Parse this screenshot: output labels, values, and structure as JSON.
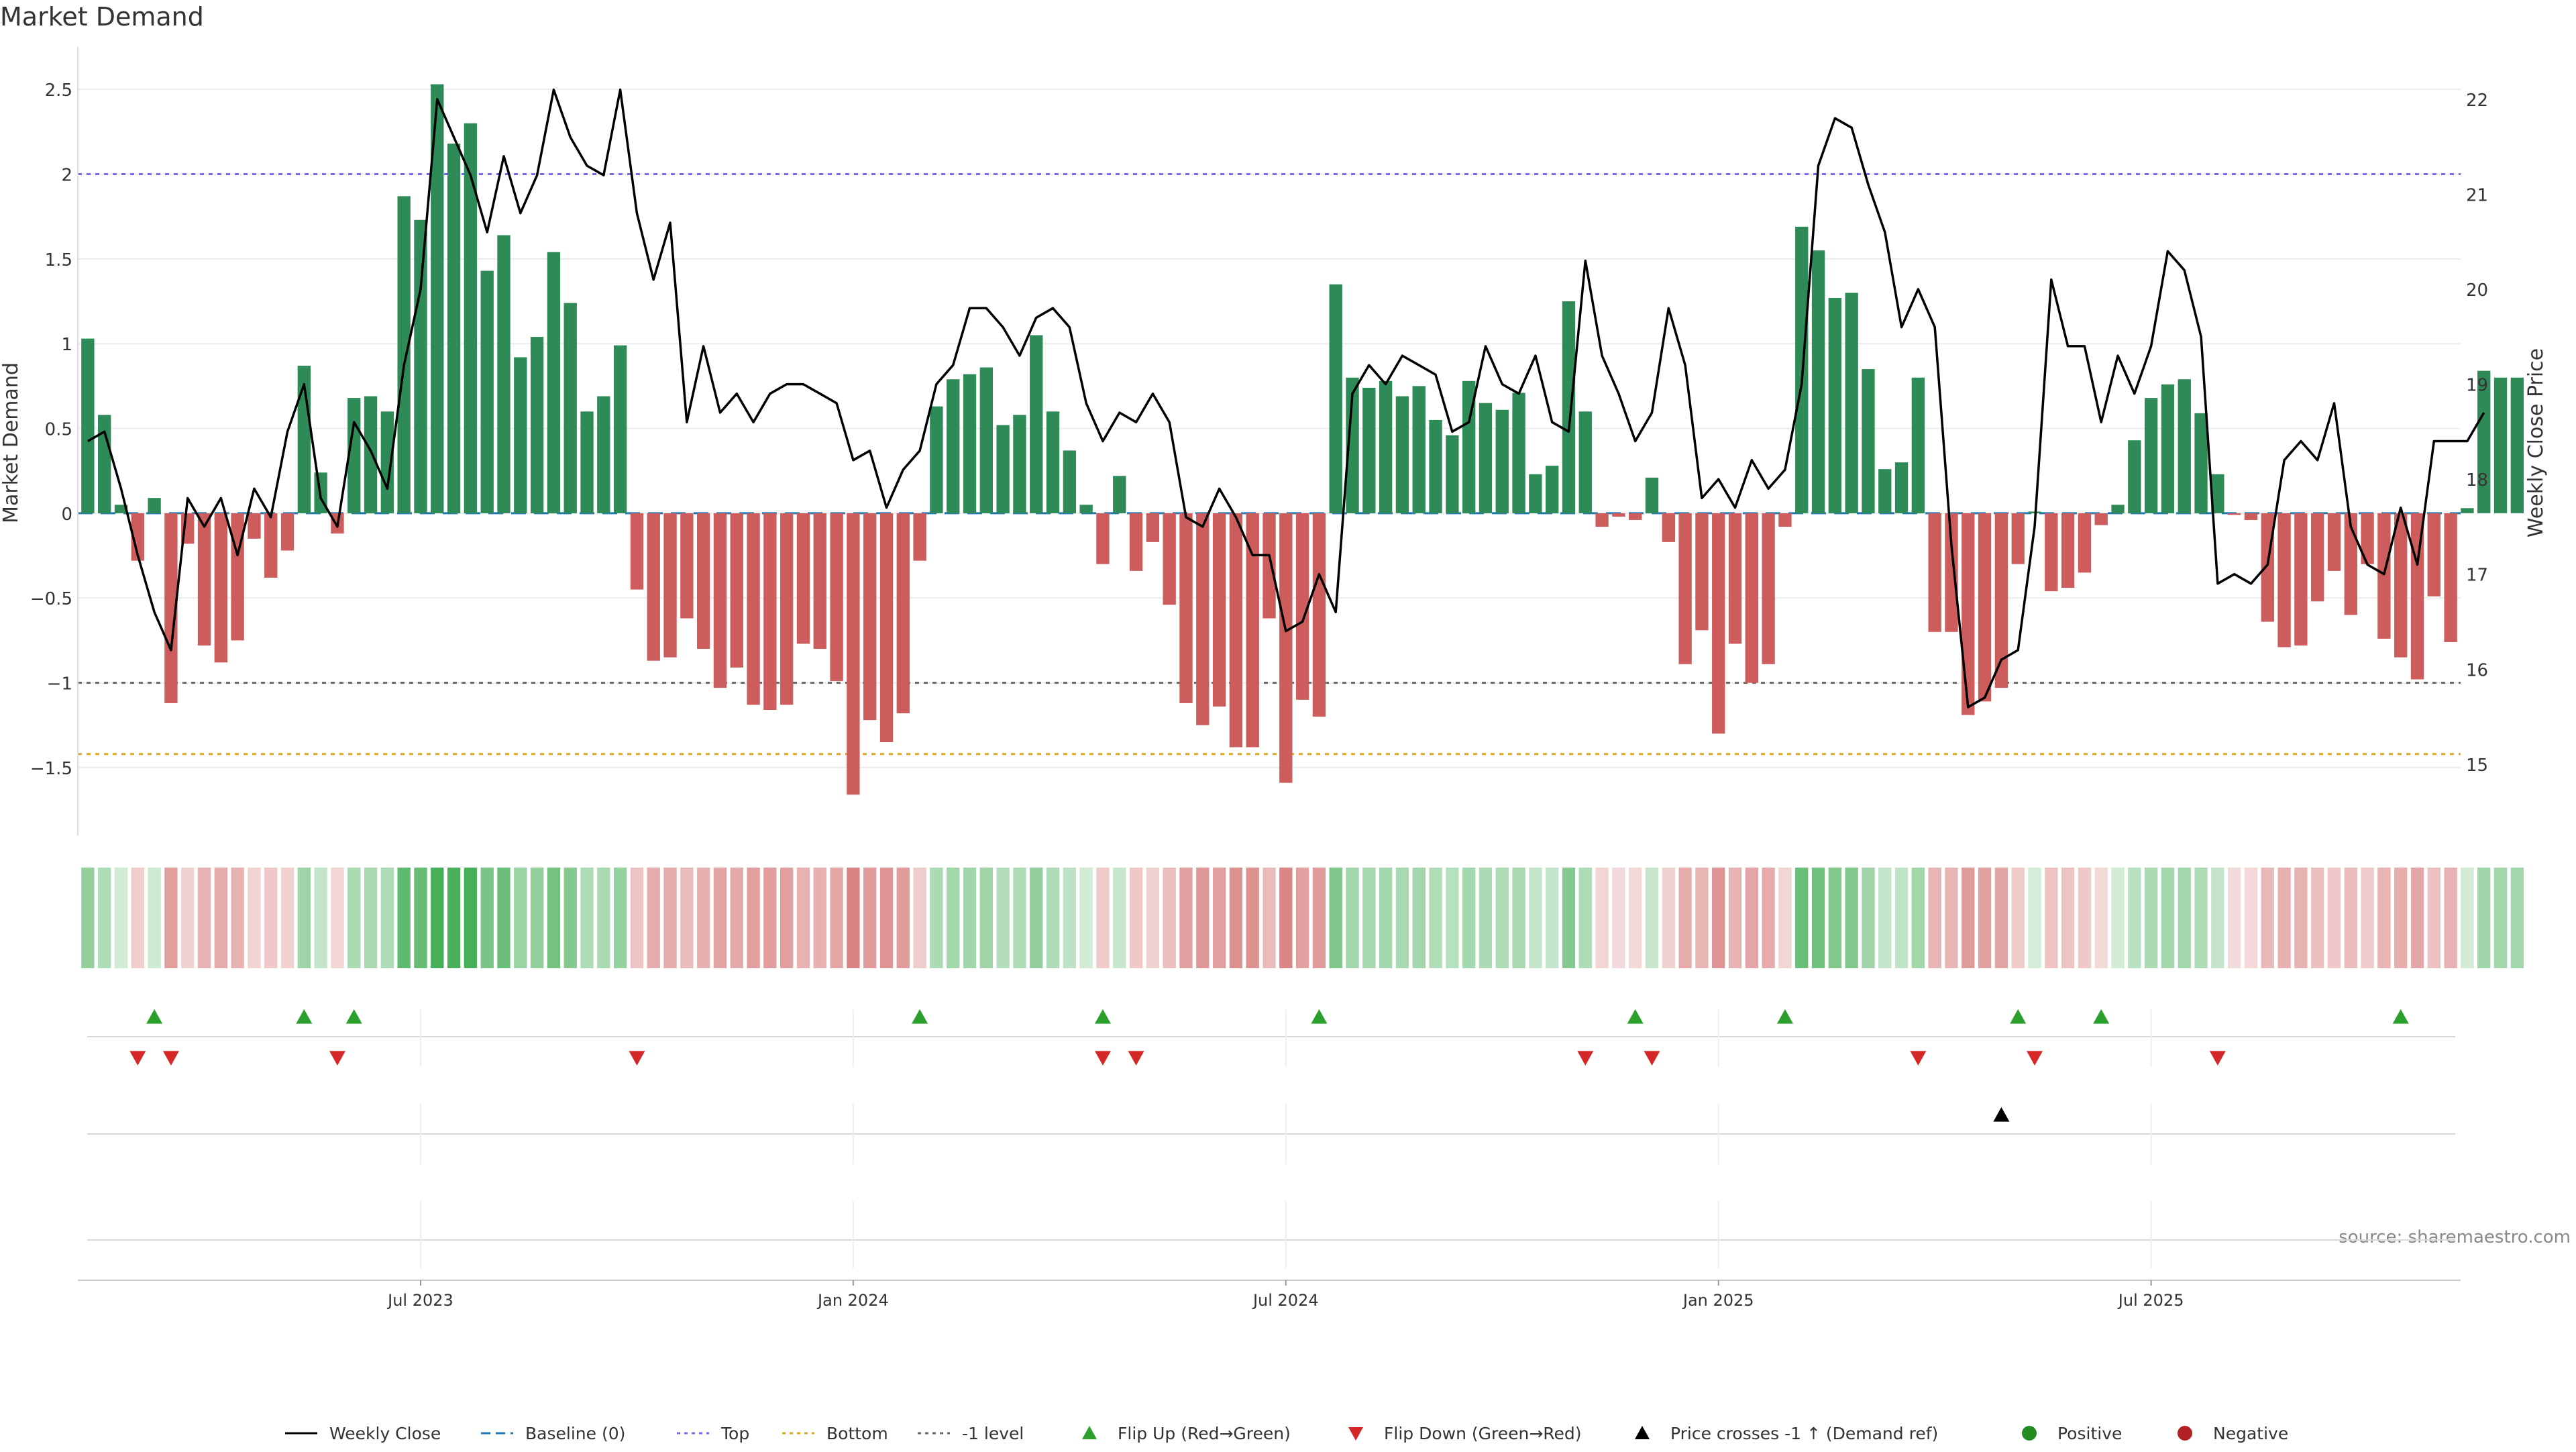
{
  "chart_data": {
    "type": "bar",
    "title": "Market Demand",
    "ylabel": "Market Demand",
    "y2label": "Weekly Close Price",
    "ylim": [
      -1.9,
      2.75
    ],
    "y2lim": [
      14.25,
      22.55
    ],
    "yticks": [
      -1.5,
      -1,
      -0.5,
      0,
      0.5,
      1,
      1.5,
      2,
      2.5
    ],
    "ytick_labels": [
      "−1.5",
      "−1",
      "−0.5",
      "0",
      "0.5",
      "1",
      "1.5",
      "2",
      "2.5"
    ],
    "y2ticks": [
      15,
      16,
      17,
      18,
      19,
      20,
      21,
      22
    ],
    "y2tick_labels": [
      "15",
      "16",
      "17",
      "18",
      "19",
      "20",
      "21",
      "22"
    ],
    "week_range": [
      -0.6,
      142.6
    ],
    "date_ticks": [
      {
        "label": "Jul 2023",
        "week": 20
      },
      {
        "label": "Jan 2024",
        "week": 46
      },
      {
        "label": "Jul 2024",
        "week": 72
      },
      {
        "label": "Jan 2025",
        "week": 98
      },
      {
        "label": "Jul 2025",
        "week": 124
      }
    ],
    "reference_lines": [
      {
        "name": "Top",
        "value": 2.0,
        "color": "#7b68ee"
      },
      {
        "name": "Bottom",
        "value": -1.42,
        "color": "#daa520"
      },
      {
        "name": "-1 level",
        "value": -1.0,
        "color": "#666666"
      },
      {
        "name": "Baseline (0)",
        "value": 0.0,
        "color": "#1f77b4"
      }
    ],
    "demand": [
      1.03,
      0.58,
      0.05,
      -0.28,
      0.09,
      -1.12,
      -0.18,
      -0.78,
      -0.88,
      -0.75,
      -0.15,
      -0.38,
      -0.22,
      0.87,
      0.24,
      -0.12,
      0.68,
      0.69,
      0.6,
      1.87,
      1.73,
      2.53,
      2.18,
      2.3,
      1.43,
      1.64,
      0.92,
      1.04,
      1.54,
      1.24,
      0.6,
      0.69,
      0.99,
      -0.45,
      -0.87,
      -0.85,
      -0.62,
      -0.8,
      -1.03,
      -0.91,
      -1.13,
      -1.16,
      -1.13,
      -0.77,
      -0.8,
      -0.99,
      -1.66,
      -1.22,
      -1.35,
      -1.18,
      -0.28,
      0.63,
      0.79,
      0.82,
      0.86,
      0.52,
      0.58,
      1.05,
      0.6,
      0.37,
      0.05,
      -0.3,
      0.22,
      -0.34,
      -0.17,
      -0.54,
      -1.12,
      -1.25,
      -1.14,
      -1.38,
      -1.38,
      -0.62,
      -1.59,
      -1.1,
      -1.2,
      1.35,
      0.8,
      0.74,
      0.78,
      0.69,
      0.75,
      0.55,
      0.46,
      0.78,
      0.65,
      0.61,
      0.71,
      0.23,
      0.28,
      1.25,
      0.6,
      -0.08,
      -0.02,
      -0.04,
      0.21,
      -0.17,
      -0.89,
      -0.69,
      -1.3,
      -0.77,
      -1.0,
      -0.89,
      -0.08,
      1.69,
      1.55,
      1.27,
      1.3,
      0.85,
      0.26,
      0.3,
      0.8,
      -0.7,
      -0.7,
      -1.19,
      -1.11,
      -1.03,
      -0.3,
      0.01,
      -0.46,
      -0.44,
      -0.35,
      -0.07,
      0.05,
      0.43,
      0.68,
      0.76,
      0.79,
      0.59,
      0.23,
      -0.01,
      -0.04,
      -0.64,
      -0.79,
      -0.78,
      -0.52,
      -0.34,
      -0.6,
      -0.3,
      -0.74,
      -0.85,
      -0.98,
      -0.49,
      -0.76,
      0.03,
      0.84,
      0.8,
      0.8
    ],
    "weekly_close": [
      18.4,
      18.5,
      17.9,
      17.2,
      16.6,
      16.2,
      17.8,
      17.5,
      17.8,
      17.2,
      17.9,
      17.6,
      18.5,
      19.0,
      17.8,
      17.5,
      18.6,
      18.3,
      17.9,
      19.2,
      20.0,
      22.0,
      21.6,
      21.2,
      20.6,
      21.4,
      20.8,
      21.2,
      22.1,
      21.6,
      21.3,
      21.2,
      22.1,
      20.8,
      20.1,
      20.7,
      18.6,
      19.4,
      18.7,
      18.9,
      18.6,
      18.9,
      19.0,
      19.0,
      18.9,
      18.8,
      18.2,
      18.3,
      17.7,
      18.1,
      18.3,
      19.0,
      19.2,
      19.8,
      19.8,
      19.6,
      19.3,
      19.7,
      19.8,
      19.6,
      18.8,
      18.4,
      18.7,
      18.6,
      18.9,
      18.6,
      17.6,
      17.5,
      17.9,
      17.6,
      17.2,
      17.2,
      16.4,
      16.5,
      17.0,
      16.6,
      18.9,
      19.2,
      19.0,
      19.3,
      19.2,
      19.1,
      18.5,
      18.6,
      19.4,
      19.0,
      18.9,
      19.3,
      18.6,
      18.5,
      20.3,
      19.3,
      18.9,
      18.4,
      18.7,
      19.8,
      19.2,
      17.8,
      18.0,
      17.7,
      18.2,
      17.9,
      18.1,
      19.0,
      21.3,
      21.8,
      21.7,
      21.1,
      20.6,
      19.6,
      20.0,
      19.6,
      17.3,
      15.6,
      15.7,
      16.1,
      16.2,
      17.5,
      20.1,
      19.4,
      19.4,
      18.6,
      19.3,
      18.9,
      19.4,
      20.4,
      20.2,
      19.5,
      16.9,
      17.0,
      16.9,
      17.1,
      18.2,
      18.4,
      18.2,
      18.8,
      17.5,
      17.1,
      17.0,
      17.7,
      17.1,
      18.4,
      18.4,
      18.4,
      18.7
    ],
    "flip_up_weeks": [
      4,
      13,
      16,
      50,
      61,
      74,
      93,
      102,
      116,
      121,
      139
    ],
    "flip_down_weeks": [
      3,
      5,
      15,
      33,
      61,
      63,
      90,
      94,
      110,
      117,
      128
    ],
    "price_cross_weeks": [
      115
    ],
    "source": "source: sharemaestro.com",
    "legend": {
      "position": "bottom-center",
      "entries": [
        {
          "label": "Weekly Close",
          "kind": "line",
          "color": "#000000"
        },
        {
          "label": "Baseline (0)",
          "kind": "dash",
          "color": "#1f77b4"
        },
        {
          "label": "Top",
          "kind": "dot",
          "color": "#7b68ee"
        },
        {
          "label": "Bottom",
          "kind": "dot",
          "color": "#daa520"
        },
        {
          "label": "-1 level",
          "kind": "dot",
          "color": "#666666"
        },
        {
          "label": "Flip Up (Red→Green)",
          "kind": "tri-up",
          "color": "#2ca02c"
        },
        {
          "label": "Flip Down (Green→Red)",
          "kind": "tri-down",
          "color": "#d62728"
        },
        {
          "label": "Price crosses -1 ↑ (Demand ref)",
          "kind": "tri-up",
          "color": "#000000"
        },
        {
          "label": "Positive",
          "kind": "circle",
          "color": "#228b22"
        },
        {
          "label": "Negative",
          "kind": "circle",
          "color": "#b22222"
        }
      ]
    }
  },
  "colors": {
    "positive": "#2e8b57",
    "negative": "#cd5c5c",
    "strip_positive": "#3daa50",
    "strip_negative": "#cd5c5c",
    "price_line": "#000000"
  }
}
